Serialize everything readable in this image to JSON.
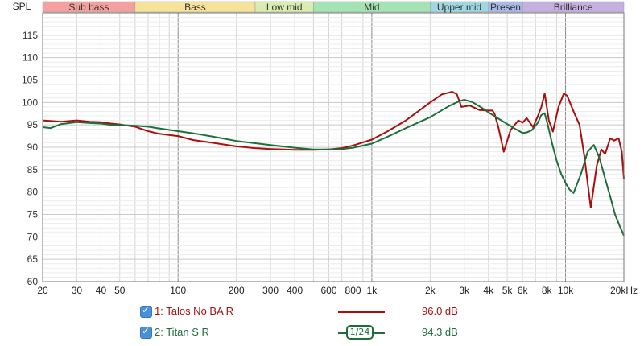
{
  "chart_data": {
    "type": "line",
    "ylabel": "SPL",
    "ylim": [
      60,
      120
    ],
    "xlim": [
      20,
      20000
    ],
    "x_scale": "log",
    "grid": true,
    "y_ticks": [
      60,
      65,
      70,
      75,
      80,
      85,
      90,
      95,
      100,
      105,
      110,
      115
    ],
    "x_ticks": [
      {
        "v": 20,
        "label": "20"
      },
      {
        "v": 30,
        "label": "30"
      },
      {
        "v": 40,
        "label": "40"
      },
      {
        "v": 50,
        "label": "50"
      },
      {
        "v": 100,
        "label": "100"
      },
      {
        "v": 200,
        "label": "200"
      },
      {
        "v": 300,
        "label": "300"
      },
      {
        "v": 400,
        "label": "400"
      },
      {
        "v": 600,
        "label": "600"
      },
      {
        "v": 800,
        "label": "800"
      },
      {
        "v": 1000,
        "label": "1k"
      },
      {
        "v": 2000,
        "label": "2k"
      },
      {
        "v": 3000,
        "label": "3k"
      },
      {
        "v": 4000,
        "label": "4k"
      },
      {
        "v": 5000,
        "label": "5k"
      },
      {
        "v": 6000,
        "label": "6k"
      },
      {
        "v": 8000,
        "label": "8k"
      },
      {
        "v": 10000,
        "label": "10k"
      },
      {
        "v": 20000,
        "label": "20kHz"
      }
    ],
    "bands": [
      {
        "label": "Sub bass",
        "from": 20,
        "to": 60,
        "color": "#f4a0a0"
      },
      {
        "label": "Bass",
        "from": 60,
        "to": 250,
        "color": "#f7e29a"
      },
      {
        "label": "Low mid",
        "from": 250,
        "to": 500,
        "color": "#d9edb0"
      },
      {
        "label": "Mid",
        "from": 500,
        "to": 2000,
        "color": "#a6e3b4"
      },
      {
        "label": "Upper mid",
        "from": 2000,
        "to": 4000,
        "color": "#9fd8e3"
      },
      {
        "label": "Presen",
        "from": 4000,
        "to": 6000,
        "color": "#a9b9e8"
      },
      {
        "label": "Brilliance",
        "from": 6000,
        "to": 20000,
        "color": "#c5b0e0"
      }
    ],
    "series": [
      {
        "name": "1: Talos No BA R",
        "color": "#a80f0f",
        "db": "96.0 dB",
        "x": [
          20,
          25,
          30,
          35,
          40,
          45,
          50,
          60,
          70,
          80,
          100,
          120,
          150,
          200,
          250,
          300,
          350,
          400,
          500,
          600,
          700,
          800,
          1000,
          1200,
          1500,
          2000,
          2300,
          2600,
          2750,
          2900,
          3200,
          3600,
          4000,
          4200,
          4300,
          4500,
          4800,
          5200,
          5700,
          6000,
          6300,
          6800,
          7200,
          7500,
          7800,
          8200,
          8600,
          9200,
          9800,
          10200,
          11000,
          11800,
          12500,
          13000,
          13500,
          14500,
          15300,
          16000,
          17000,
          17800,
          18800,
          19500,
          20000
        ],
        "values": [
          96.0,
          95.7,
          96.0,
          95.7,
          95.6,
          95.3,
          95.1,
          94.6,
          93.6,
          93.0,
          92.5,
          91.6,
          91.0,
          90.2,
          89.8,
          89.6,
          89.5,
          89.4,
          89.4,
          89.5,
          89.8,
          90.4,
          91.7,
          93.5,
          96.0,
          100.0,
          101.8,
          102.4,
          101.8,
          99.0,
          99.3,
          98.3,
          98.2,
          98.2,
          97.5,
          94.5,
          89.0,
          93.8,
          96.0,
          95.5,
          96.5,
          94.5,
          97.0,
          99.0,
          102.0,
          96.0,
          93.5,
          99.0,
          102.0,
          101.5,
          98.0,
          95.0,
          88.0,
          82.0,
          76.5,
          86.0,
          89.5,
          88.5,
          92.0,
          91.5,
          92.0,
          89.0,
          83.0
        ]
      },
      {
        "name": "2: Titan S R",
        "color": "#1e6e3c",
        "db": "94.3 dB",
        "smoothing": "1/24",
        "x": [
          20,
          22,
          25,
          30,
          35,
          40,
          45,
          50,
          60,
          70,
          80,
          100,
          120,
          150,
          200,
          250,
          300,
          400,
          500,
          600,
          700,
          800,
          1000,
          1200,
          1500,
          2000,
          2500,
          2800,
          3000,
          3300,
          3700,
          4000,
          4500,
          5000,
          5500,
          6000,
          6300,
          6700,
          7200,
          7500,
          7800,
          8100,
          8500,
          9000,
          9500,
          10000,
          10500,
          11000,
          12000,
          13000,
          14000,
          15000,
          16000,
          17000,
          18000,
          19000,
          20000
        ],
        "values": [
          94.5,
          94.3,
          95.2,
          95.6,
          95.4,
          95.3,
          95.0,
          95.0,
          94.8,
          94.6,
          94.2,
          93.6,
          93.1,
          92.4,
          91.4,
          90.9,
          90.5,
          89.9,
          89.5,
          89.5,
          89.6,
          89.9,
          90.8,
          92.3,
          94.3,
          96.7,
          99.2,
          100.2,
          100.6,
          100.1,
          98.8,
          97.8,
          96.4,
          95.2,
          94.1,
          93.2,
          93.3,
          93.8,
          95.5,
          97.2,
          97.6,
          95.0,
          91.0,
          87.0,
          84.0,
          82.0,
          80.5,
          79.8,
          84.0,
          89.0,
          90.5,
          87.5,
          83.0,
          79.0,
          75.0,
          72.5,
          70.3
        ]
      }
    ]
  },
  "legend": [
    {
      "checkbox": "✓",
      "label": "1: Talos No BA R",
      "db": "96.0 dB",
      "color": "#a80f0f",
      "smoothing": ""
    },
    {
      "checkbox": "✓",
      "label": "2: Titan S R",
      "db": "94.3 dB",
      "color": "#1e6e3c",
      "smoothing": "1/24"
    }
  ]
}
